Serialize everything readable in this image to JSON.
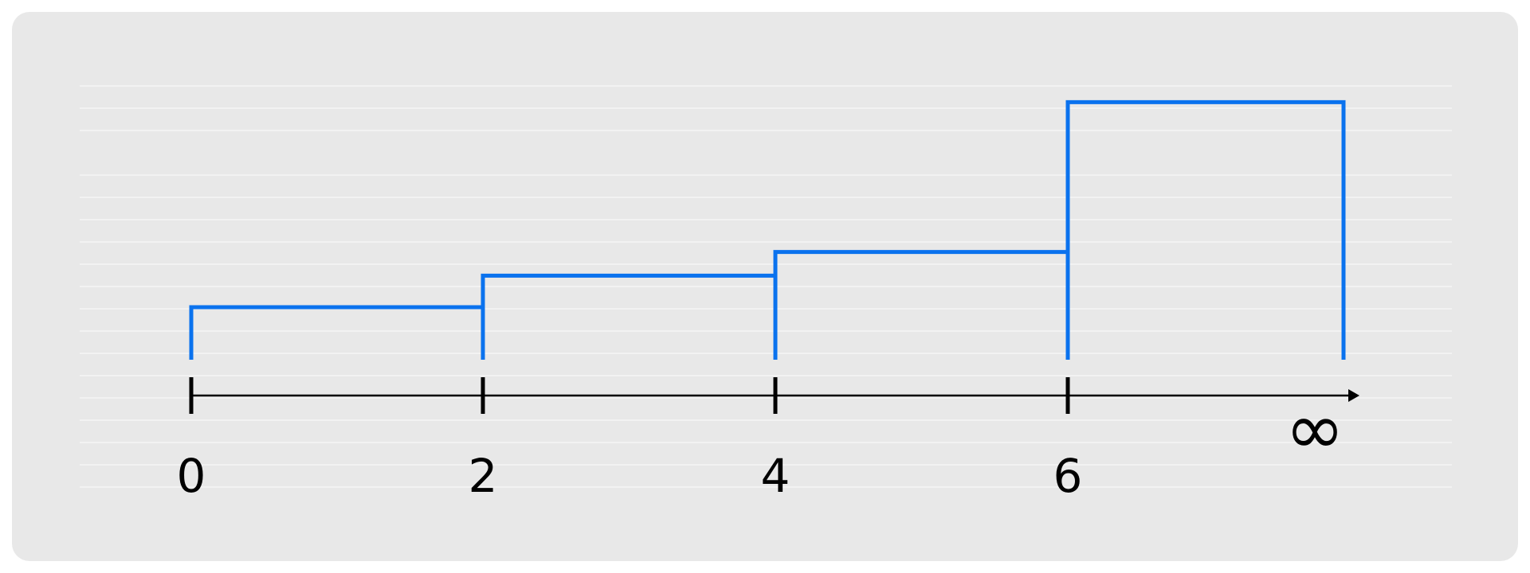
{
  "chart_data": {
    "type": "line",
    "step": "post",
    "x_ticks": [
      "0",
      "2",
      "4",
      "6",
      "∞"
    ],
    "x": [
      0,
      2,
      4,
      6
    ],
    "values": [
      1,
      1.6,
      2.05,
      4.9
    ],
    "ylim": [
      0,
      5.3
    ],
    "grid": true,
    "colors": {
      "series": "#0a72ee",
      "axis": "#000000",
      "grid": "#f2f2f2",
      "background": "#e8e8e8"
    }
  }
}
